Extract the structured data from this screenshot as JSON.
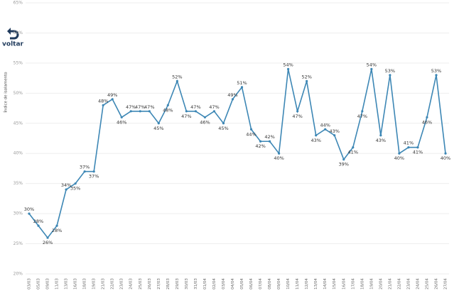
{
  "nav": {
    "back_label": "voltar"
  },
  "chart_data": {
    "type": "line",
    "ylabel": "Índice de isolamento",
    "categories": [
      "03/03",
      "05/03",
      "09/03",
      "11/03",
      "13/03",
      "16/03",
      "18/03",
      "19/03",
      "21/03",
      "22/03",
      "23/03",
      "24/03",
      "25/03",
      "26/03",
      "27/03",
      "28/03",
      "29/03",
      "30/03",
      "31/03",
      "01/04",
      "02/04",
      "03/04",
      "04/04",
      "05/04",
      "06/04",
      "07/04",
      "08/04",
      "09/04",
      "10/04",
      "11/04",
      "12/04",
      "13/04",
      "14/04",
      "15/04",
      "16/04",
      "17/04",
      "18/04",
      "19/04",
      "20/04",
      "21/04",
      "22/04",
      "23/04",
      "24/04",
      "25/04",
      "26/04",
      "27/04"
    ],
    "series": [
      {
        "name": "Índice de isolamento",
        "color": "#3d87b5",
        "values": [
          30,
          28,
          26,
          28,
          34,
          35,
          37,
          37,
          48,
          49,
          46,
          47,
          47,
          47,
          45,
          48,
          52,
          47,
          47,
          46,
          47,
          45,
          49,
          51,
          44,
          42,
          42,
          40,
          54,
          47,
          52,
          43,
          44,
          43,
          39,
          41,
          47,
          54,
          43,
          53,
          40,
          41,
          41,
          46,
          53,
          40
        ],
        "value_labels": [
          "30%",
          "28%",
          "26%",
          "28%",
          "34%",
          "35%",
          "37%",
          "37%",
          "48%",
          "49%",
          "46%",
          "47%",
          "47%",
          "47%",
          "45%",
          "48%",
          "52%",
          "47%",
          "47%",
          "46%",
          "47%",
          "45%",
          "49%",
          "51%",
          "44%",
          "42%",
          "42%",
          "40%",
          "54%",
          "47%",
          "52%",
          "43%",
          "44%",
          "43%",
          "39%",
          "41%",
          "47%",
          "54%",
          "43%",
          "53%",
          "40%",
          "41%",
          "41%",
          "46%",
          "53%",
          "40%"
        ]
      }
    ],
    "ylim": [
      20,
      65
    ],
    "yticks": [
      {
        "value": 20,
        "label": "20%"
      },
      {
        "value": 25,
        "label": "25%"
      },
      {
        "value": 30,
        "label": "30%"
      },
      {
        "value": 35,
        "label": "35%"
      },
      {
        "value": 40,
        "label": "40%"
      },
      {
        "value": 45,
        "label": "45%"
      },
      {
        "value": 50,
        "label": "50%"
      },
      {
        "value": 55,
        "label": "55%"
      },
      {
        "value": 60,
        "label": "60%"
      },
      {
        "value": 65,
        "label": "65%"
      }
    ],
    "grid": true
  }
}
